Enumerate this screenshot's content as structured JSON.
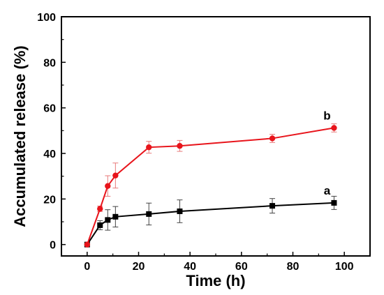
{
  "chart_data": {
    "type": "line",
    "title": "",
    "xlabel": "Time (h)",
    "ylabel": "Accumulated release (%)",
    "xlim": [
      -10,
      110
    ],
    "ylim": [
      -5,
      100
    ],
    "xticks": [
      "0",
      "20",
      "40",
      "60",
      "80",
      "100"
    ],
    "yticks": [
      "0",
      "20",
      "40",
      "60",
      "80",
      "100"
    ],
    "grid": false,
    "legend": "none",
    "series": [
      {
        "name": "a",
        "color": "#000000",
        "marker": "square",
        "x": [
          0,
          5,
          8,
          11,
          24,
          36,
          72,
          96
        ],
        "y": [
          0,
          8.5,
          10.8,
          12.2,
          13.4,
          14.6,
          17.0,
          18.3
        ],
        "err": [
          0,
          2.0,
          4.5,
          4.5,
          4.8,
          5.0,
          3.2,
          2.9
        ]
      },
      {
        "name": "b",
        "color": "#e8141b",
        "marker": "circle",
        "x": [
          0,
          5,
          8,
          11,
          24,
          36,
          72,
          96
        ],
        "y": [
          0,
          15.7,
          25.7,
          30.3,
          42.7,
          43.3,
          46.6,
          51.2
        ],
        "err": [
          0,
          1.2,
          4.5,
          5.5,
          2.6,
          2.4,
          1.8,
          1.8
        ]
      }
    ]
  }
}
